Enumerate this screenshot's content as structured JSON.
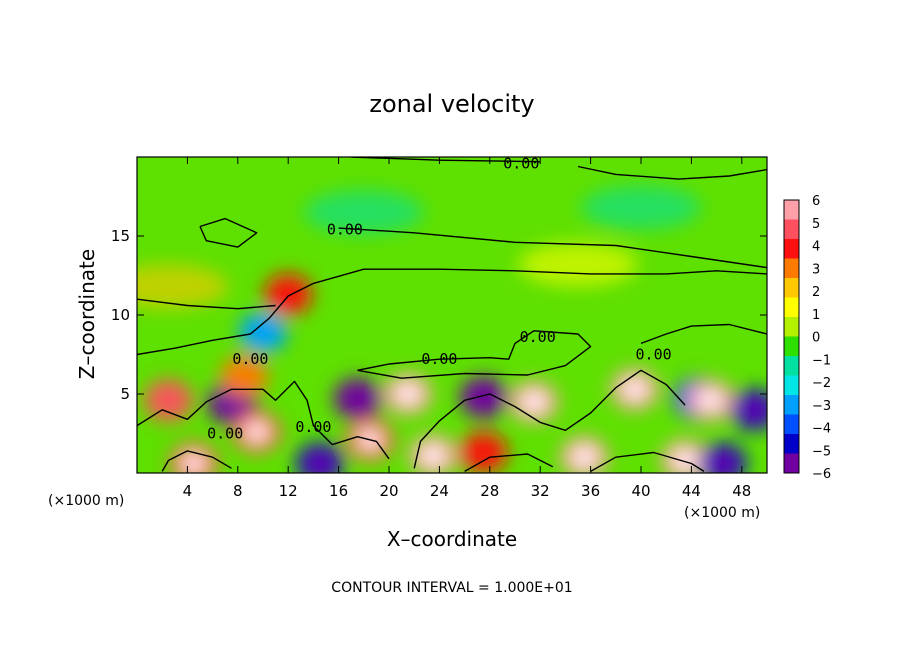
{
  "chart_data": {
    "type": "heatmap",
    "title": "zonal velocity",
    "xlabel": "X–coordinate",
    "ylabel": "Z–coordinate",
    "x_unit": "(×1000 m)",
    "footer": "CONTOUR INTERVAL = 1.000E+01",
    "xlim": [
      0,
      50
    ],
    "ylim": [
      0,
      20
    ],
    "x_ticks": [
      4,
      8,
      12,
      16,
      20,
      24,
      28,
      32,
      36,
      40,
      44,
      48
    ],
    "x_tick_labels": [
      "4",
      "8",
      "12",
      "16",
      "20",
      "24",
      "28",
      "32",
      "36",
      "40",
      "44",
      "48"
    ],
    "y_ticks": [
      5,
      10,
      15
    ],
    "y_tick_labels": [
      "5",
      "10",
      "15"
    ],
    "colorbar": {
      "range": [
        -6,
        6
      ],
      "ticks": [
        6,
        5,
        4,
        3,
        2,
        1,
        0,
        -1,
        -2,
        -3,
        -4,
        -5,
        -6
      ],
      "tick_labels": [
        "6",
        "5",
        "4",
        "3",
        "2",
        "1",
        "0",
        "−1",
        "−2",
        "−3",
        "−4",
        "−5",
        "−6"
      ],
      "colors": [
        "#ff9fa7",
        "#ff5060",
        "#ff1010",
        "#ff7a00",
        "#ffc800",
        "#ffff00",
        "#b4f000",
        "#2ee000",
        "#00e0a0",
        "#00e6e6",
        "#00a0ff",
        "#0050ff",
        "#0000c8",
        "#7000a0"
      ]
    },
    "contour_labels": [
      {
        "text": "0.00",
        "x": 30.5,
        "y": 19.6
      },
      {
        "text": "0.00",
        "x": 16.5,
        "y": 15.4
      },
      {
        "text": "0.00",
        "x": 31.8,
        "y": 8.6
      },
      {
        "text": "0.00",
        "x": 24.0,
        "y": 7.2
      },
      {
        "text": "0.00",
        "x": 9.0,
        "y": 7.2
      },
      {
        "text": "0.00",
        "x": 41.0,
        "y": 7.5
      },
      {
        "text": "0.00",
        "x": 7.0,
        "y": 2.5
      },
      {
        "text": "0.00",
        "x": 14.0,
        "y": 2.9
      }
    ],
    "features": [
      {
        "x": 2.5,
        "y": 4.6,
        "value": 4.5
      },
      {
        "x": 7.5,
        "y": 4.4,
        "value": -6
      },
      {
        "x": 9.5,
        "y": 2.6,
        "value": 5
      },
      {
        "x": 8.5,
        "y": 6.1,
        "value": 3
      },
      {
        "x": 17.5,
        "y": 4.7,
        "value": -6
      },
      {
        "x": 18.5,
        "y": 2.1,
        "value": 5
      },
      {
        "x": 21.5,
        "y": 5.0,
        "value": 6
      },
      {
        "x": 27.5,
        "y": 4.8,
        "value": -6
      },
      {
        "x": 31.5,
        "y": 4.5,
        "value": 6
      },
      {
        "x": 39.5,
        "y": 5.3,
        "value": 6
      },
      {
        "x": 44.5,
        "y": 4.7,
        "value": -4
      },
      {
        "x": 45.5,
        "y": 4.6,
        "value": 6
      },
      {
        "x": 49.0,
        "y": 4.0,
        "value": -5
      },
      {
        "x": 23.5,
        "y": 1.1,
        "value": 6
      },
      {
        "x": 27.5,
        "y": 1.3,
        "value": 4
      },
      {
        "x": 35.5,
        "y": 1.0,
        "value": 6
      },
      {
        "x": 43.5,
        "y": 0.8,
        "value": 6
      },
      {
        "x": 12.0,
        "y": 11.3,
        "value": 4
      },
      {
        "x": 10.0,
        "y": 8.9,
        "value": -3
      },
      {
        "x": 14.5,
        "y": 0.6,
        "value": -5
      },
      {
        "x": 4.5,
        "y": 0.6,
        "value": 5
      },
      {
        "x": 46.5,
        "y": 0.6,
        "value": -5
      },
      {
        "x": 2.5,
        "y": 11.8,
        "value": 2
      },
      {
        "x": 35.0,
        "y": 13.2,
        "value": 1.5
      },
      {
        "x": 18.0,
        "y": 16.5,
        "value": -1.5
      },
      {
        "x": 40.0,
        "y": 16.8,
        "value": -1.5
      }
    ]
  }
}
